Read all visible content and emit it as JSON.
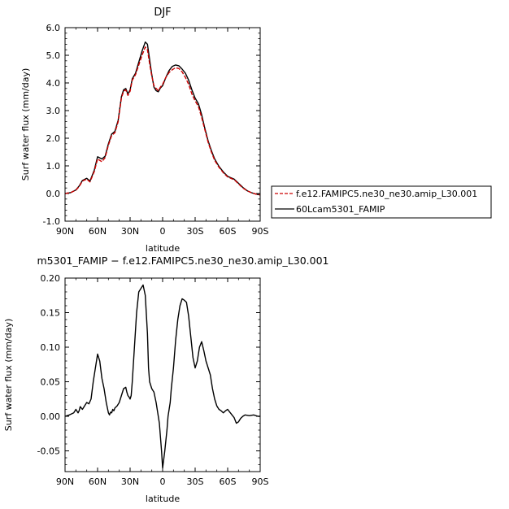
{
  "chart_data": [
    {
      "type": "line",
      "title": "DJF",
      "xlabel": "latitude",
      "ylabel": "Surf water flux (mm/day)",
      "xlim": [
        90,
        -90
      ],
      "ylim": [
        -1.0,
        6.0
      ],
      "x_ticks": [
        90,
        60,
        30,
        0,
        -30,
        -60,
        -90
      ],
      "x_tick_labels": [
        "90N",
        "60N",
        "30N",
        "0",
        "30S",
        "60S",
        "90S"
      ],
      "y_ticks": [
        -1.0,
        0.0,
        1.0,
        2.0,
        3.0,
        4.0,
        5.0,
        6.0
      ],
      "y_tick_labels": [
        "-1.0",
        "0.0",
        "1.0",
        "2.0",
        "3.0",
        "4.0",
        "5.0",
        "6.0"
      ],
      "legend_position": "right",
      "series": [
        {
          "name": "f.e12.FAMIPC5.ne30_ne30.amip_L30.001",
          "color": "#cc0000",
          "dash": "dashed",
          "x": [
            90,
            85,
            80,
            77,
            74,
            70,
            67,
            63,
            60,
            56,
            53,
            50,
            47,
            44,
            41,
            38,
            36,
            34,
            32,
            30,
            28,
            25,
            22,
            19,
            16,
            14,
            12,
            10,
            8,
            6,
            4,
            2,
            0,
            -3,
            -6,
            -9,
            -12,
            -15,
            -18,
            -21,
            -24,
            -27,
            -30,
            -33,
            -36,
            -39,
            -42,
            -45,
            -48,
            -52,
            -56,
            -60,
            -63,
            -66,
            -70,
            -74,
            -78,
            -82,
            -86,
            -90
          ],
          "y": [
            0.0,
            0.03,
            0.12,
            0.25,
            0.45,
            0.52,
            0.42,
            0.8,
            1.25,
            1.15,
            1.3,
            1.75,
            2.1,
            2.2,
            2.6,
            3.45,
            3.7,
            3.75,
            3.55,
            3.7,
            4.1,
            4.3,
            4.65,
            5.0,
            5.3,
            5.2,
            4.7,
            4.25,
            3.9,
            3.8,
            3.72,
            3.85,
            3.95,
            4.2,
            4.38,
            4.48,
            4.55,
            4.52,
            4.4,
            4.2,
            3.95,
            3.6,
            3.35,
            3.15,
            2.75,
            2.3,
            1.85,
            1.5,
            1.2,
            0.95,
            0.75,
            0.6,
            0.55,
            0.5,
            0.35,
            0.2,
            0.1,
            0.03,
            -0.02,
            -0.05
          ]
        },
        {
          "name": "60Lcam5301_FAMIP",
          "color": "#000000",
          "dash": "solid",
          "x": [
            90,
            85,
            80,
            77,
            74,
            70,
            67,
            63,
            60,
            56,
            53,
            50,
            47,
            44,
            41,
            38,
            36,
            34,
            32,
            30,
            28,
            25,
            22,
            19,
            16,
            14,
            12,
            10,
            8,
            6,
            4,
            2,
            0,
            -3,
            -6,
            -9,
            -12,
            -15,
            -18,
            -21,
            -24,
            -27,
            -30,
            -33,
            -36,
            -39,
            -42,
            -45,
            -48,
            -52,
            -56,
            -60,
            -63,
            -66,
            -70,
            -74,
            -78,
            -82,
            -86,
            -90
          ],
          "y": [
            0.0,
            0.03,
            0.13,
            0.27,
            0.47,
            0.55,
            0.45,
            0.85,
            1.33,
            1.25,
            1.35,
            1.8,
            2.15,
            2.25,
            2.65,
            3.5,
            3.75,
            3.8,
            3.6,
            3.75,
            4.15,
            4.35,
            4.75,
            5.15,
            5.48,
            5.4,
            4.85,
            4.3,
            3.85,
            3.72,
            3.68,
            3.82,
            3.9,
            4.2,
            4.45,
            4.6,
            4.65,
            4.62,
            4.5,
            4.35,
            4.1,
            3.75,
            3.45,
            3.25,
            2.85,
            2.35,
            1.9,
            1.55,
            1.25,
            0.98,
            0.78,
            0.62,
            0.57,
            0.52,
            0.37,
            0.22,
            0.1,
            0.03,
            -0.02,
            -0.05
          ]
        }
      ]
    },
    {
      "type": "line",
      "title": "m5301_FAMIP  −  f.e12.FAMIPC5.ne30_ne30.amip_L30.001",
      "xlabel": "latitude",
      "ylabel": "Surf water flux (mm/day)",
      "xlim": [
        90,
        -90
      ],
      "ylim": [
        -0.08,
        0.2
      ],
      "x_ticks": [
        90,
        60,
        30,
        0,
        -30,
        -60,
        -90
      ],
      "x_tick_labels": [
        "90N",
        "60N",
        "30N",
        "0",
        "30S",
        "60S",
        "90S"
      ],
      "y_ticks": [
        -0.05,
        0.0,
        0.05,
        0.1,
        0.15,
        0.2
      ],
      "y_tick_labels": [
        "-0.05",
        "0.00",
        "0.05",
        "0.10",
        "0.15",
        "0.20"
      ],
      "series": [
        {
          "color": "#000000",
          "dash": "solid",
          "x": [
            90,
            86,
            82,
            80,
            78,
            77,
            76,
            74,
            72,
            70,
            68,
            66,
            64,
            62,
            60,
            58,
            56,
            54,
            52,
            50,
            49,
            48,
            47,
            46,
            45,
            44,
            42,
            40,
            38,
            36,
            34,
            33,
            32,
            31,
            30,
            29,
            28,
            26,
            24,
            22,
            20,
            18,
            16,
            14,
            13,
            12,
            10,
            8,
            6,
            5,
            4,
            3,
            2,
            1,
            0,
            -2,
            -4,
            -5,
            -6,
            -7,
            -8,
            -10,
            -12,
            -14,
            -16,
            -18,
            -20,
            -22,
            -24,
            -26,
            -28,
            -30,
            -32,
            -34,
            -36,
            -38,
            -40,
            -42,
            -44,
            -46,
            -48,
            -50,
            -52,
            -54,
            -56,
            -58,
            -60,
            -62,
            -64,
            -66,
            -68,
            -70,
            -72,
            -74,
            -76,
            -80,
            -84,
            -88,
            -90
          ],
          "y": [
            0.0,
            0.002,
            0.005,
            0.01,
            0.005,
            0.008,
            0.014,
            0.01,
            0.015,
            0.02,
            0.018,
            0.025,
            0.05,
            0.07,
            0.09,
            0.08,
            0.055,
            0.04,
            0.02,
            0.005,
            0.002,
            0.006,
            0.005,
            0.01,
            0.008,
            0.012,
            0.015,
            0.02,
            0.03,
            0.04,
            0.042,
            0.035,
            0.03,
            0.028,
            0.025,
            0.03,
            0.05,
            0.1,
            0.15,
            0.18,
            0.185,
            0.19,
            0.175,
            0.12,
            0.07,
            0.05,
            0.04,
            0.035,
            0.02,
            0.01,
            0.0,
            -0.01,
            -0.03,
            -0.05,
            -0.075,
            -0.05,
            -0.02,
            0.0,
            0.01,
            0.02,
            0.04,
            0.07,
            0.11,
            0.14,
            0.16,
            0.17,
            0.168,
            0.165,
            0.145,
            0.115,
            0.085,
            0.07,
            0.08,
            0.1,
            0.108,
            0.095,
            0.08,
            0.07,
            0.06,
            0.04,
            0.025,
            0.015,
            0.01,
            0.008,
            0.005,
            0.008,
            0.01,
            0.006,
            0.002,
            -0.002,
            -0.01,
            -0.008,
            -0.003,
            0.0,
            0.002,
            0.001,
            0.002,
            0.0,
            0.0
          ]
        }
      ]
    }
  ]
}
